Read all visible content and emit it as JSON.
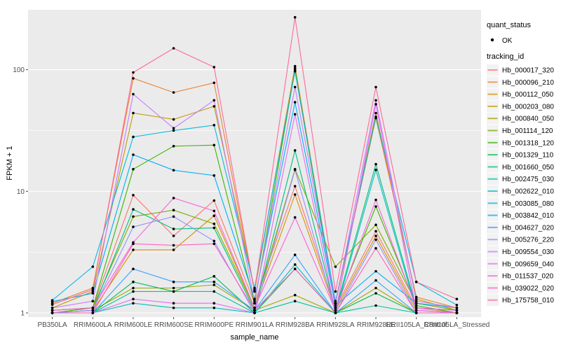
{
  "chart_data": {
    "type": "line",
    "title": "",
    "xlabel": "sample_name",
    "ylabel": "FPKM + 1",
    "y_scale": "log10",
    "y_ticks": [
      1,
      10,
      100
    ],
    "y_minor_ticks": [
      3.162,
      31.62
    ],
    "ylim": [
      1,
      311
    ],
    "grid": true,
    "panel_bg": "#EBEBEB",
    "grid_color": "#FFFFFF",
    "tick_label_color": "#4D4D4D",
    "point_color": "#000000",
    "x_categories": [
      "PB350LA",
      "RRIM600LA",
      "RRIM600LE",
      "RRIM600SE",
      "RRIM600PE",
      "RRIM901LA",
      "RRIM928BA",
      "RRIM928LA",
      "RRIM928LE",
      "RRII105LA_Control",
      "RRII105LA_Stressed"
    ],
    "legend": {
      "position": "right",
      "quant_status_title": "quant_status",
      "quant_status_ok_label": "OK",
      "tracking_title": "tracking_id",
      "key_bg": "#F2F2F2"
    },
    "series": [
      {
        "name": "Hb_000017_320",
        "color": "#F8766D",
        "values": [
          1.05,
          1.1,
          9.3,
          4.3,
          8.4,
          1.2,
          11,
          1.1,
          4.7,
          1.1,
          1.0
        ]
      },
      {
        "name": "Hb_000096_210",
        "color": "#EA8331",
        "values": [
          1.2,
          1.6,
          85,
          65,
          78,
          1.5,
          107,
          1.2,
          40,
          1.35,
          1.1
        ]
      },
      {
        "name": "Hb_000112_050",
        "color": "#D89000",
        "values": [
          1.0,
          1.05,
          3.3,
          3.3,
          6.3,
          1.1,
          9.4,
          1.05,
          4.3,
          1.05,
          1.0
        ]
      },
      {
        "name": "Hb_000203_080",
        "color": "#C09B00",
        "values": [
          1.1,
          1.5,
          44,
          39,
          50,
          1.55,
          103,
          1.2,
          44,
          1.3,
          1.05
        ]
      },
      {
        "name": "Hb_000840_050",
        "color": "#A3A500",
        "values": [
          1.0,
          1.05,
          1.6,
          1.6,
          1.7,
          1.05,
          1.4,
          1.0,
          1.6,
          1.0,
          1.0
        ]
      },
      {
        "name": "Hb_001114_120",
        "color": "#7CAE00",
        "values": [
          1.05,
          1.1,
          6.2,
          7.0,
          5.4,
          1.1,
          15.2,
          2.4,
          5.3,
          1.2,
          1.05
        ]
      },
      {
        "name": "Hb_001318_120",
        "color": "#39B600",
        "values": [
          1.0,
          1.1,
          15.2,
          23.5,
          24,
          1.2,
          100,
          1.1,
          7.5,
          1.15,
          1.0
        ]
      },
      {
        "name": "Hb_001329_110",
        "color": "#00BB4E",
        "values": [
          1.0,
          1.0,
          1.8,
          1.5,
          2.0,
          1.0,
          2.3,
          1.0,
          1.45,
          1.0,
          1.0
        ]
      },
      {
        "name": "Hb_001660_050",
        "color": "#00BF7D",
        "values": [
          1.0,
          1.05,
          7.1,
          4.9,
          5.0,
          1.05,
          21.7,
          1.05,
          16.7,
          1.1,
          1.05
        ]
      },
      {
        "name": "Hb_002475_030",
        "color": "#00C1A3",
        "values": [
          1.0,
          1.0,
          1.5,
          1.5,
          1.5,
          1.0,
          1.25,
          1.0,
          1.15,
          1.0,
          1.0
        ]
      },
      {
        "name": "Hb_002622_010",
        "color": "#00BFC4",
        "values": [
          1.0,
          1.0,
          1.2,
          1.1,
          1.1,
          1.0,
          2.5,
          1.0,
          15,
          1.05,
          1.0
        ]
      },
      {
        "name": "Hb_003085_080",
        "color": "#00BAE0",
        "values": [
          1.27,
          2.4,
          28,
          31.6,
          35,
          1.6,
          97,
          1.25,
          41,
          1.8,
          1.16
        ]
      },
      {
        "name": "Hb_003842_010",
        "color": "#00B0F6",
        "values": [
          1.24,
          1.45,
          20,
          14.9,
          13.5,
          1.3,
          54,
          1.15,
          2.2,
          1.2,
          1.1
        ]
      },
      {
        "name": "Hb_004627_020",
        "color": "#35A2FF",
        "values": [
          1.0,
          1.0,
          2.3,
          1.8,
          1.8,
          1.05,
          3.0,
          1.0,
          1.85,
          1.0,
          1.0
        ]
      },
      {
        "name": "Hb_005276_220",
        "color": "#9590FF",
        "values": [
          1.0,
          1.05,
          5.1,
          6.2,
          3.9,
          1.0,
          15.0,
          1.0,
          4.0,
          1.0,
          1.0
        ]
      },
      {
        "name": "Hb_009554_030",
        "color": "#C77CFF",
        "values": [
          1.1,
          1.25,
          63,
          33,
          56,
          1.25,
          72,
          1.2,
          56,
          1.25,
          1.1
        ]
      },
      {
        "name": "Hb_009659_040",
        "color": "#E76BF3",
        "values": [
          1.0,
          1.0,
          1.3,
          1.2,
          1.2,
          1.0,
          43,
          1.0,
          52,
          1.05,
          1.0
        ]
      },
      {
        "name": "Hb_011537_020",
        "color": "#FA62DB",
        "values": [
          1.05,
          1.1,
          3.8,
          8.8,
          6.9,
          1.1,
          6.1,
          1.05,
          8.5,
          1.1,
          1.05
        ]
      },
      {
        "name": "Hb_039022_020",
        "color": "#FF62BC",
        "values": [
          1.0,
          1.0,
          3.7,
          3.6,
          3.7,
          1.05,
          2.3,
          1.0,
          3.4,
          1.0,
          1.0
        ]
      },
      {
        "name": "Hb_175758_010",
        "color": "#FF6A98",
        "values": [
          1.17,
          1.55,
          95,
          150,
          105,
          1.5,
          270,
          1.5,
          72,
          1.8,
          1.3
        ]
      }
    ]
  }
}
